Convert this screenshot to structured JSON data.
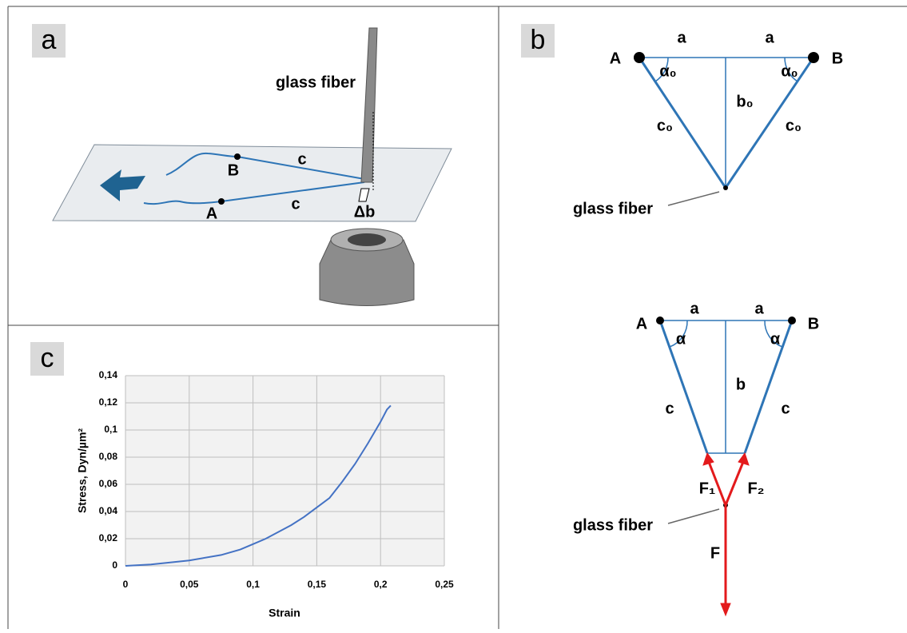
{
  "panel_a": {
    "label": "a",
    "fiber_label": "glass fiber",
    "point_b": "B",
    "point_a": "A",
    "length_top": "c",
    "length_bottom": "c",
    "delta": "Δb"
  },
  "panel_b": {
    "label": "b",
    "initial": {
      "point_a": "A",
      "point_b": "B",
      "half_left": "a",
      "half_right": "a",
      "angle_left": "α₀",
      "angle_right": "α₀",
      "height": "b₀",
      "side_left": "c₀",
      "side_right": "c₀",
      "fiber_label": "glass fiber"
    },
    "loaded": {
      "point_a": "A",
      "point_b": "B",
      "half_left": "a",
      "half_right": "a",
      "angle_left": "α",
      "angle_right": "α",
      "height": "b",
      "side_left": "c",
      "side_right": "c",
      "force_1": "F₁",
      "force_2": "F₂",
      "fiber_label": "glass fiber",
      "force": "F"
    }
  },
  "panel_c": {
    "label": "c"
  },
  "chart_data": {
    "type": "line",
    "xlabel": "Strain",
    "ylabel": "Stress, Dyn/µm²",
    "color": "#4472c4",
    "grid": true,
    "x": [
      0,
      0.02,
      0.05,
      0.075,
      0.09,
      0.1,
      0.11,
      0.12,
      0.13,
      0.14,
      0.15,
      0.16,
      0.17,
      0.18,
      0.19,
      0.2,
      0.205,
      0.208
    ],
    "values": [
      0,
      0.001,
      0.004,
      0.008,
      0.012,
      0.016,
      0.02,
      0.025,
      0.03,
      0.036,
      0.043,
      0.05,
      0.062,
      0.075,
      0.09,
      0.106,
      0.115,
      0.118
    ],
    "xlim": [
      0,
      0.25
    ],
    "xticks": [
      0,
      {
        "value": 0.05,
        "label": "0,05"
      },
      {
        "value": 0.1,
        "label": "0,1"
      },
      {
        "value": 0.15,
        "label": "0,15"
      },
      {
        "value": 0.2,
        "label": "0,2"
      },
      {
        "value": 0.25,
        "label": "0,25"
      }
    ],
    "ylim": [
      0,
      0.14
    ],
    "yticks": [
      0,
      {
        "value": 0.02,
        "label": "0,02"
      },
      {
        "value": 0.04,
        "label": "0,04"
      },
      {
        "value": 0.06,
        "label": "0,06"
      },
      {
        "value": 0.08,
        "label": "0,08"
      },
      {
        "value": 0.1,
        "label": "0,1"
      },
      {
        "value": 0.12,
        "label": "0,12"
      },
      {
        "value": 0.14,
        "label": "0,14"
      }
    ]
  }
}
